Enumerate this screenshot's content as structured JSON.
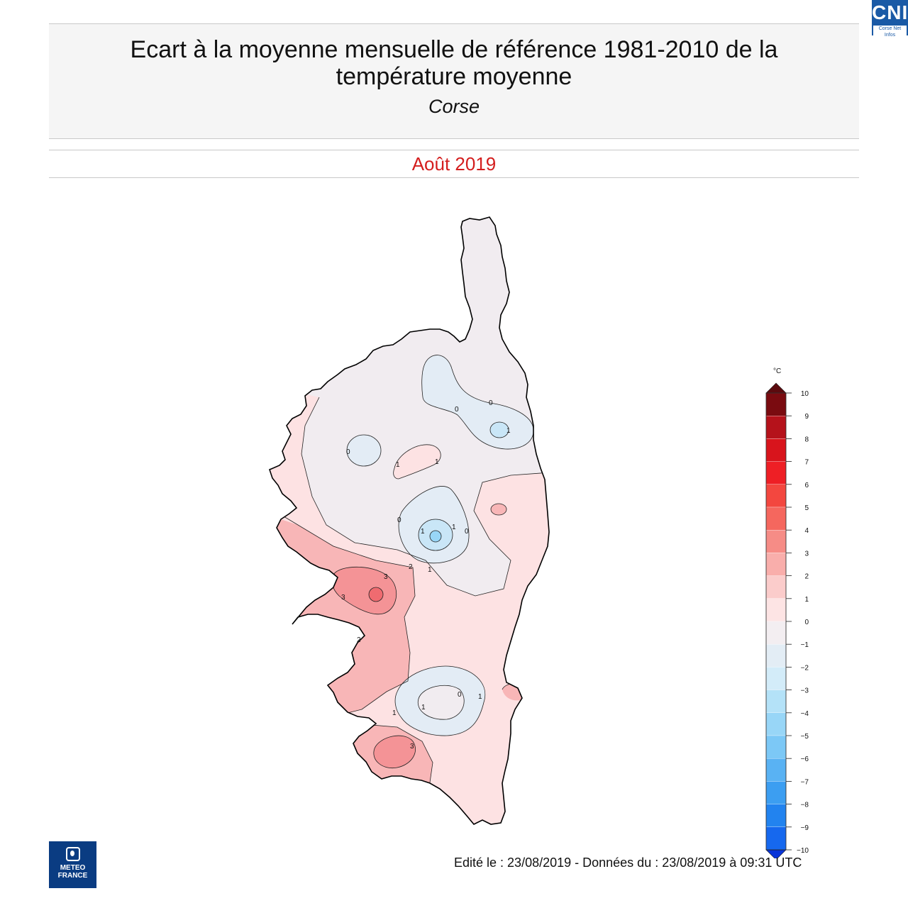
{
  "header": {
    "title_line1": "Ecart à la moyenne mensuelle de référence 1981-2010 de la",
    "title_line2": "température moyenne",
    "region": "Corse",
    "period": "Août 2019"
  },
  "footer": {
    "edition": "Edité le : 23/08/2019 - Données du : 23/08/2019 à 09:31 UTC"
  },
  "logos": {
    "top_right": "CNI",
    "top_right_sub": "Corse Net Infos",
    "bottom_left_line1": "METEO",
    "bottom_left_line2": "FRANCE"
  },
  "legend": {
    "unit": "°C",
    "ticks": [
      "10",
      "9",
      "8",
      "7",
      "6",
      "5",
      "4",
      "3",
      "2",
      "1",
      "0",
      "−1",
      "−2",
      "−3",
      "−4",
      "−5",
      "−6",
      "−7",
      "−8",
      "−9",
      "−10"
    ],
    "colors": [
      "#7a0b10",
      "#b5121b",
      "#d8141c",
      "#ee1f25",
      "#f3473f",
      "#f5675e",
      "#f68c86",
      "#f9aeab",
      "#fbcccb",
      "#fde4e4",
      "#f3eef1",
      "#e3edf5",
      "#d3ecf9",
      "#b4e2f8",
      "#98d6f7",
      "#7cc8f6",
      "#59b2f3",
      "#3c9ef1",
      "#2283ef",
      "#1668ee",
      "#0f4ce8"
    ],
    "arrow_top_color": "#5c0a0e",
    "arrow_bottom_color": "#0a35d8"
  },
  "contour_labels": [
    "0",
    "0",
    "1",
    "0",
    "1",
    "1",
    "0",
    "1",
    "0",
    "1",
    "1",
    "2",
    "3",
    "3",
    "2",
    "0",
    "1",
    "1",
    "3",
    "1"
  ],
  "colors": {
    "title_red": "#d41e1e",
    "map_outline": "#000000",
    "zone_0_1": "#f1ecf0",
    "zone_1_2": "#fde2e3",
    "zone_2_3": "#f8b6b7",
    "zone_3_4": "#f49396",
    "zone_4_5": "#ef6b70",
    "zone_neg": "#e3ecf5",
    "zone_neg2": "#c9e6f7"
  }
}
